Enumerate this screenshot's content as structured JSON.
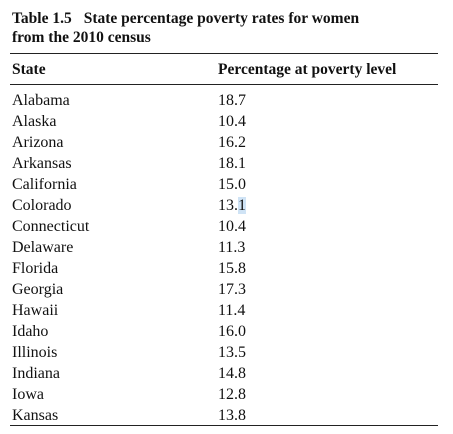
{
  "table": {
    "label": "Table 1.5",
    "caption_line1": "State percentage poverty rates for women",
    "caption_line2": "from the 2010 census",
    "headers": {
      "state": "State",
      "value": "Percentage at poverty level"
    },
    "rows": [
      {
        "state": "Alabama",
        "value": "18.7"
      },
      {
        "state": "Alaska",
        "value": "10.4"
      },
      {
        "state": "Arizona",
        "value": "16.2"
      },
      {
        "state": "Arkansas",
        "value": "18.1"
      },
      {
        "state": "California",
        "value": "15.0"
      },
      {
        "state": "Colorado",
        "value": "13.1"
      },
      {
        "state": "Connecticut",
        "value": "10.4"
      },
      {
        "state": "Delaware",
        "value": "11.3"
      },
      {
        "state": "Florida",
        "value": "15.8"
      },
      {
        "state": "Georgia",
        "value": "17.3"
      },
      {
        "state": "Hawaii",
        "value": "11.4"
      },
      {
        "state": "Idaho",
        "value": "16.0"
      },
      {
        "state": "Illinois",
        "value": "13.5"
      },
      {
        "state": "Indiana",
        "value": "14.8"
      },
      {
        "state": "Iowa",
        "value": "12.8"
      },
      {
        "state": "Kansas",
        "value": "13.8"
      }
    ],
    "selection": {
      "row_index": 5,
      "selected_char": "1"
    }
  }
}
